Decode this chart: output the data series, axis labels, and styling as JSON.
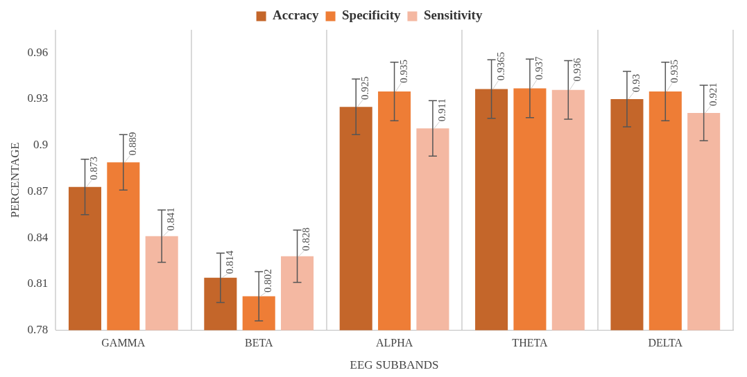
{
  "chart_data": {
    "type": "bar",
    "xlabel": "EEG SUBBANDS",
    "ylabel": "PERCENTAGE",
    "categories": [
      "GAMMA",
      "BETA",
      "ALPHA",
      "THETA",
      "DELTA"
    ],
    "series": [
      {
        "name": "Accracy",
        "color": "#c4662a",
        "values": [
          0.873,
          0.814,
          0.925,
          0.9365,
          0.93
        ],
        "errors": [
          0.018,
          0.016,
          0.018,
          0.019,
          0.018
        ]
      },
      {
        "name": "Specificity",
        "color": "#ee7d36",
        "values": [
          0.889,
          0.802,
          0.935,
          0.937,
          0.935
        ],
        "errors": [
          0.018,
          0.016,
          0.019,
          0.019,
          0.019
        ]
      },
      {
        "name": "Sensitivity",
        "color": "#f4b8a2",
        "values": [
          0.841,
          0.828,
          0.911,
          0.936,
          0.921
        ],
        "errors": [
          0.017,
          0.017,
          0.018,
          0.019,
          0.018
        ]
      }
    ],
    "ylim": [
      0.78,
      0.975
    ],
    "yticks": [
      0.78,
      0.81,
      0.84,
      0.87,
      0.9,
      0.93,
      0.96
    ],
    "grid": "x",
    "legend": "top",
    "data_labels": true
  }
}
